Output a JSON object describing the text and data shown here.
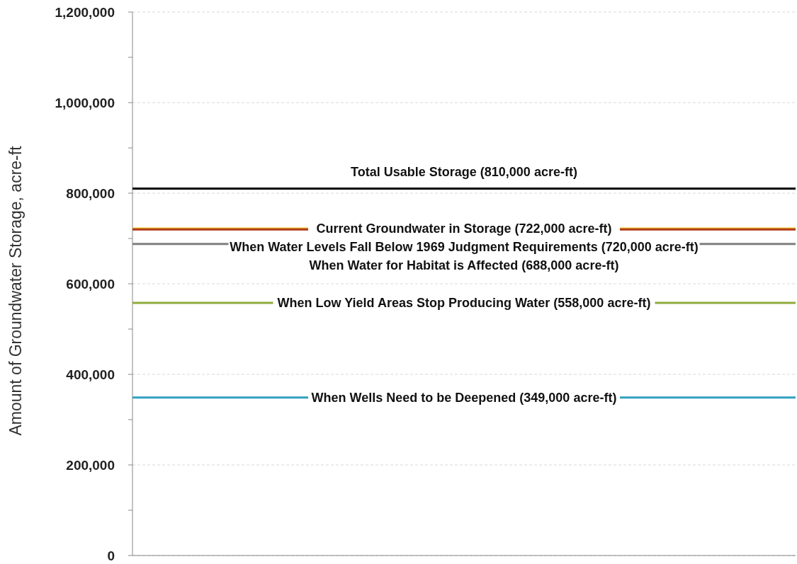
{
  "chart_data": {
    "type": "line",
    "ylabel": "Amount of Groundwater Storage, acre-ft",
    "categories": [
      null
    ],
    "ylim": [
      0,
      1200000
    ],
    "yticks": [
      {
        "value": 0,
        "label": "0"
      },
      {
        "value": 100000,
        "label": null
      },
      {
        "value": 200000,
        "label": "200,000"
      },
      {
        "value": 300000,
        "label": null
      },
      {
        "value": 400000,
        "label": "400,000"
      },
      {
        "value": 500000,
        "label": null
      },
      {
        "value": 600000,
        "label": "600,000"
      },
      {
        "value": 700000,
        "label": null
      },
      {
        "value": 800000,
        "label": "800,000"
      },
      {
        "value": 900000,
        "label": null
      },
      {
        "value": 1000000,
        "label": "1,000,000"
      },
      {
        "value": 1100000,
        "label": null
      },
      {
        "value": 1200000,
        "label": "1,200,000"
      }
    ],
    "grid": "y",
    "ref_lines": [
      {
        "axis": "y",
        "value": 810000,
        "label": "Total Usable Storage (810,000 acre-ft)",
        "color": "#000000"
      },
      {
        "axis": "y",
        "value": 722000,
        "label": "Current Groundwater in Storage (722,000 acre-ft)",
        "color": "#f0c020"
      },
      {
        "axis": "y",
        "value": 720000,
        "label": "When Water Levels Fall Below 1969 Judgment Requirements (720,000 acre-ft)",
        "color": "#b03a1a"
      },
      {
        "axis": "y",
        "value": 688000,
        "label": "When Water for Habitat is Affected (688,000 acre-ft)",
        "color": "#7f7f7f"
      },
      {
        "axis": "y",
        "value": 558000,
        "label": "When Low Yield Areas Stop Producing Water (558,000 acre-ft)",
        "color": "#8faa3c"
      },
      {
        "axis": "y",
        "value": 349000,
        "label": "When Wells Need to be Deepened (349,000 acre-ft)",
        "color": "#31a0c0"
      }
    ]
  }
}
